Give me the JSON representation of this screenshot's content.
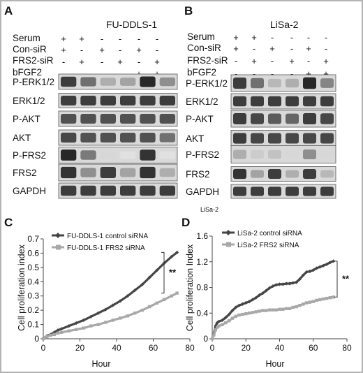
{
  "figure_border_color": "#9a9a9a",
  "panel_labels": [
    "A",
    "B",
    "C",
    "D"
  ],
  "blots": [
    {
      "title": "FU-DDLS-1",
      "condition_rows": [
        {
          "label": "Serum",
          "signs": [
            "+",
            "+",
            "-",
            "-",
            "-",
            "-"
          ]
        },
        {
          "label": "Con-siR",
          "signs": [
            "+",
            "-",
            "+",
            "-",
            "+",
            "-"
          ]
        },
        {
          "label": "FRS2-siR",
          "signs": [
            "-",
            "+",
            "-",
            "+",
            "-",
            "+"
          ]
        },
        {
          "label": "bFGF2",
          "signs": [
            "-",
            "-",
            "-",
            "-",
            "+",
            "+"
          ]
        }
      ],
      "bands": [
        {
          "label": "P-ERK1/2",
          "intensity": [
            0.85,
            0.6,
            0.3,
            0.35,
            0.95,
            0.45
          ]
        },
        {
          "label": "ERK1/2",
          "intensity": [
            0.85,
            0.85,
            0.85,
            0.85,
            0.85,
            0.85
          ]
        },
        {
          "label": "P-AKT",
          "intensity": [
            0.75,
            0.75,
            0.75,
            0.75,
            0.75,
            0.75
          ]
        },
        {
          "label": "AKT",
          "intensity": [
            0.8,
            0.75,
            0.75,
            0.75,
            0.75,
            0.6
          ]
        },
        {
          "label": "P-FRS2",
          "intensity": [
            0.95,
            0.55,
            0.1,
            0.05,
            0.9,
            0.05
          ]
        },
        {
          "label": "FRS2",
          "intensity": [
            0.9,
            0.45,
            0.85,
            0.35,
            0.9,
            0.3
          ]
        },
        {
          "label": "GAPDH",
          "intensity": [
            0.85,
            0.85,
            0.85,
            0.85,
            0.85,
            0.85
          ]
        }
      ],
      "note": ""
    },
    {
      "title": "LiSa-2",
      "condition_rows": [
        {
          "label": "Serum",
          "signs": [
            "+",
            "+",
            "-",
            "-",
            "-",
            "-"
          ]
        },
        {
          "label": "Con-siR",
          "signs": [
            "+",
            "-",
            "+",
            "-",
            "+",
            "-"
          ]
        },
        {
          "label": "FRS2-siR",
          "signs": [
            "-",
            "+",
            "-",
            "+",
            "-",
            "+"
          ]
        },
        {
          "label": "bFGF2",
          "signs": [
            "-",
            "-",
            "-",
            "-",
            "+",
            "+"
          ]
        }
      ],
      "bands": [
        {
          "label": "P-ERK1/2",
          "intensity": [
            0.85,
            0.6,
            0.25,
            0.3,
            0.95,
            0.5
          ]
        },
        {
          "label": "ERK1/2",
          "intensity": [
            0.85,
            0.85,
            0.85,
            0.85,
            0.85,
            0.85
          ]
        },
        {
          "label": "P-AKT",
          "intensity": [
            0.85,
            0.8,
            0.7,
            0.65,
            0.85,
            0.8
          ]
        },
        {
          "label": "AKT",
          "intensity": [
            0.85,
            0.8,
            0.8,
            0.8,
            0.8,
            0.8
          ]
        },
        {
          "label": "P-FRS2",
          "intensity": [
            0.3,
            0.15,
            0.2,
            0.1,
            0.45,
            0.1
          ]
        },
        {
          "label": "FRS2",
          "intensity": [
            0.9,
            0.35,
            0.85,
            0.3,
            0.85,
            0.25
          ]
        },
        {
          "label": "GAPDH",
          "intensity": [
            0.85,
            0.85,
            0.85,
            0.85,
            0.85,
            0.85
          ]
        }
      ],
      "note": "LiSa-2"
    }
  ],
  "chart_data": [
    {
      "type": "line",
      "panel": "C",
      "xlabel": "Hour",
      "ylabel": "Cell proliferation index",
      "xlim": [
        0,
        80
      ],
      "ylim": [
        0,
        0.7
      ],
      "xticks": [
        0,
        20,
        40,
        60,
        80
      ],
      "yticks": [
        0,
        0.1,
        0.2,
        0.3,
        0.4,
        0.5,
        0.6,
        0.7
      ],
      "ytick_labels": [
        "0",
        "0.1",
        "0.2",
        "0.3",
        "0.4",
        "0.5",
        "0.6",
        "0.7"
      ],
      "legend_position": "top-left",
      "significance": "**",
      "series": [
        {
          "name": "FU-DDLS-1 control siRNA",
          "color": "#454545",
          "marker": "diamond",
          "x": [
            0,
            2,
            4,
            6,
            8,
            10,
            14,
            18,
            22,
            26,
            30,
            34,
            38,
            42,
            46,
            50,
            54,
            58,
            62,
            66,
            70,
            73
          ],
          "y": [
            0.0,
            0.02,
            0.03,
            0.045,
            0.06,
            0.07,
            0.09,
            0.11,
            0.13,
            0.155,
            0.18,
            0.205,
            0.235,
            0.265,
            0.3,
            0.34,
            0.38,
            0.43,
            0.48,
            0.53,
            0.575,
            0.605
          ]
        },
        {
          "name": "FU-DDLS-1 FRS2 siRNA",
          "color": "#a8a8a8",
          "marker": "square",
          "x": [
            0,
            2,
            4,
            6,
            8,
            10,
            14,
            18,
            22,
            26,
            30,
            34,
            38,
            42,
            46,
            50,
            54,
            58,
            62,
            66,
            70,
            73
          ],
          "y": [
            0.0,
            0.015,
            0.025,
            0.03,
            0.04,
            0.045,
            0.055,
            0.065,
            0.075,
            0.09,
            0.1,
            0.115,
            0.13,
            0.145,
            0.16,
            0.18,
            0.2,
            0.225,
            0.25,
            0.275,
            0.3,
            0.32
          ]
        }
      ]
    },
    {
      "type": "line",
      "panel": "D",
      "xlabel": "Hour",
      "ylabel": "Cell proliferation Index",
      "xlim": [
        0,
        80
      ],
      "ylim": [
        0,
        1.6
      ],
      "xticks": [
        0,
        20,
        40,
        60,
        80
      ],
      "yticks": [
        0,
        0.4,
        0.8,
        1.2,
        1.6
      ],
      "ytick_labels": [
        "0",
        "0.4",
        "0.8",
        "1.2",
        "1.6"
      ],
      "legend_position": "top-left",
      "significance": "**",
      "series": [
        {
          "name": "LiSa-2 control siRNA",
          "color": "#454545",
          "marker": "diamond",
          "x": [
            0,
            1,
            2,
            3,
            4,
            6,
            8,
            10,
            12,
            14,
            16,
            18,
            20,
            22,
            24,
            26,
            28,
            30,
            32,
            34,
            36,
            38,
            40,
            42,
            44,
            46,
            48,
            50,
            52,
            54,
            56,
            58,
            60,
            62,
            64,
            66,
            68,
            70,
            72
          ],
          "y": [
            0.0,
            0.08,
            0.2,
            0.25,
            0.27,
            0.29,
            0.33,
            0.38,
            0.44,
            0.49,
            0.52,
            0.54,
            0.56,
            0.58,
            0.61,
            0.64,
            0.68,
            0.71,
            0.75,
            0.79,
            0.82,
            0.84,
            0.85,
            0.85,
            0.86,
            0.86,
            0.87,
            0.88,
            0.93,
            0.99,
            1.04,
            1.05,
            1.07,
            1.1,
            1.12,
            1.14,
            1.16,
            1.19,
            1.21
          ]
        },
        {
          "name": "LiSa-2 FRS2 siRNA",
          "color": "#a8a8a8",
          "marker": "square",
          "x": [
            0,
            1,
            2,
            3,
            4,
            6,
            8,
            10,
            12,
            14,
            16,
            18,
            20,
            22,
            24,
            26,
            28,
            30,
            32,
            34,
            36,
            38,
            40,
            42,
            44,
            46,
            48,
            50,
            52,
            54,
            56,
            58,
            60,
            62,
            64,
            66,
            68,
            70,
            72
          ],
          "y": [
            0.0,
            0.06,
            0.14,
            0.18,
            0.2,
            0.22,
            0.25,
            0.28,
            0.32,
            0.35,
            0.37,
            0.38,
            0.39,
            0.4,
            0.41,
            0.42,
            0.43,
            0.44,
            0.44,
            0.45,
            0.45,
            0.45,
            0.46,
            0.46,
            0.47,
            0.47,
            0.49,
            0.5,
            0.52,
            0.54,
            0.56,
            0.57,
            0.58,
            0.6,
            0.61,
            0.62,
            0.63,
            0.64,
            0.65
          ]
        }
      ]
    }
  ]
}
